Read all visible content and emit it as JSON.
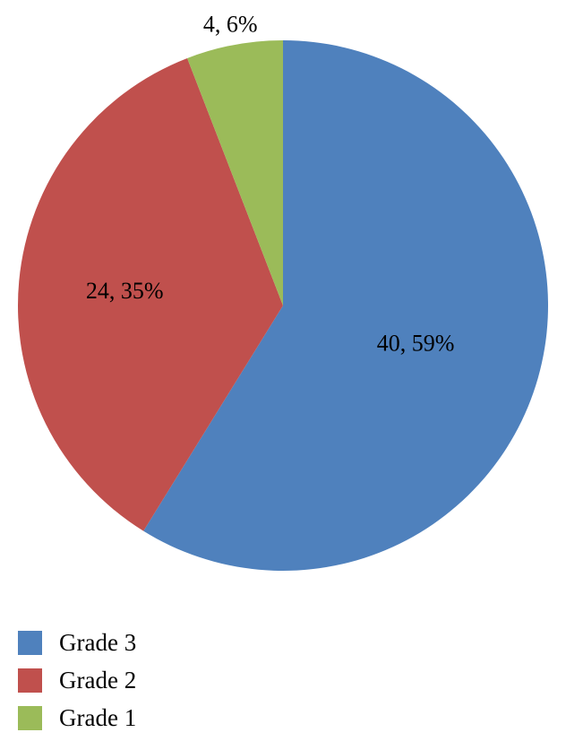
{
  "chart_data": {
    "type": "pie",
    "slices": [
      {
        "name": "Grade 3",
        "value": 40,
        "percent": 59,
        "label": "40, 59%",
        "color": "#4f81bd"
      },
      {
        "name": "Grade 2",
        "value": 24,
        "percent": 35,
        "label": "24, 35%",
        "color": "#c0504d"
      },
      {
        "name": "Grade 1",
        "value": 4,
        "percent": 6,
        "label": "4, 6%",
        "color": "#9bbb59"
      }
    ],
    "start_angle_deg": 0,
    "direction": "clockwise",
    "legend_position": "bottom-left"
  },
  "legend": {
    "items": [
      {
        "label": "Grade 3",
        "color": "#4f81bd"
      },
      {
        "label": "Grade 2",
        "color": "#c0504d"
      },
      {
        "label": "Grade 1",
        "color": "#9bbb59"
      }
    ]
  }
}
